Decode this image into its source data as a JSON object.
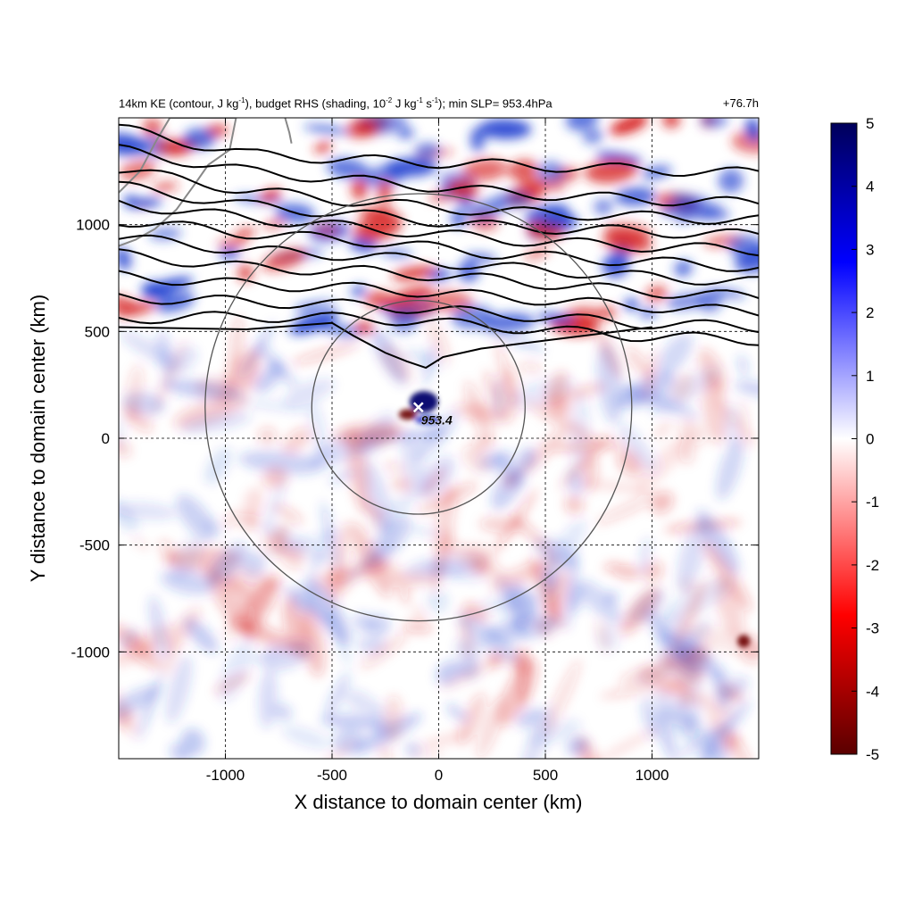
{
  "chart_data": {
    "type": "heatmap",
    "title": {
      "parts": [
        {
          "t": "14km KE (contour, J kg"
        },
        {
          "sup": "-1"
        },
        {
          "t": "), budget RHS (shading, 10"
        },
        {
          "sup": "-2"
        },
        {
          "t": " J kg"
        },
        {
          "sup": "-1"
        },
        {
          "t": " s"
        },
        {
          "sup": "-1"
        },
        {
          "t": "); min SLP= 953.4hPa"
        }
      ]
    },
    "time_label": "+76.7h",
    "xlabel": "X distance to domain center (km)",
    "ylabel": "Y distance to domain center (km)",
    "xlim": [
      -1500,
      1500
    ],
    "ylim": [
      -1500,
      1500
    ],
    "xticks": [
      -1000,
      -500,
      0,
      500,
      1000
    ],
    "yticks": [
      -1000,
      -500,
      0,
      500,
      1000
    ],
    "xtick_labels": [
      "-1000",
      "-500",
      "0",
      "500",
      "1000"
    ],
    "ytick_labels": [
      "-1000",
      "-500",
      "0",
      "500",
      "1000"
    ],
    "grid": true,
    "colorbar": {
      "range": [
        -5,
        5
      ],
      "ticks": [
        5,
        4,
        3,
        2,
        1,
        0,
        -1,
        -2,
        -3,
        -4,
        -5
      ],
      "tick_labels": [
        "5",
        "4",
        "3",
        "2",
        "1",
        "0",
        "-1",
        "-2",
        "-3",
        "-4",
        "-5"
      ],
      "colors": [
        "#00005a",
        "#0000ff",
        "#ffffff",
        "#ff0000",
        "#5a0000"
      ]
    },
    "storm_center": {
      "x": -95,
      "y": 145,
      "label": "953.4"
    },
    "range_rings_km": [
      500,
      1000
    ],
    "colors": {
      "positive": "#d62020",
      "negative": "#1f3fd0",
      "contour": "#000000",
      "ring": "#555555",
      "coast": "#888888"
    }
  }
}
